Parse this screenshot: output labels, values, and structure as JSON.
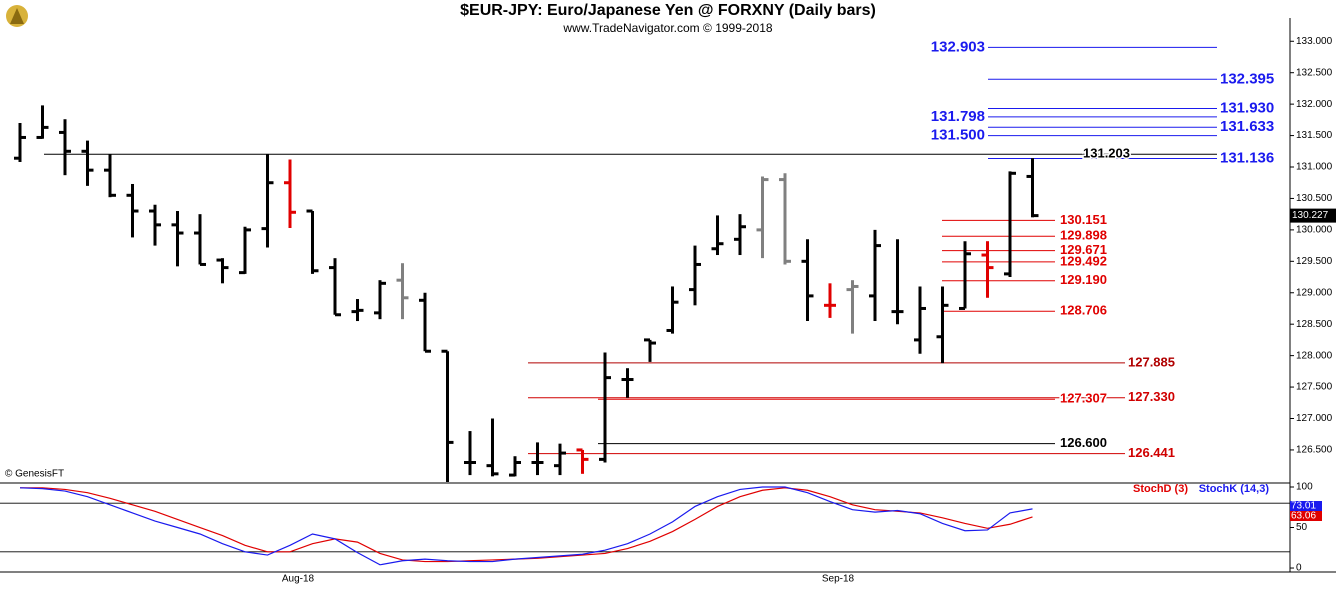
{
  "chart_data": [
    {
      "type": "ohlc",
      "title": "$EUR-JPY:  Euro/Japanese Yen @ FORXNY  (Daily bars)",
      "subtitle": "www.TradeNavigator.com © 1999-2018",
      "source": "© GenesisFT",
      "categories": [
        null,
        null,
        null,
        null,
        null,
        null,
        null,
        null,
        null,
        null,
        null,
        null,
        "Aug-18",
        null,
        null,
        null,
        null,
        null,
        null,
        null,
        null,
        null,
        null,
        null,
        null,
        null,
        null,
        null,
        null,
        null,
        null,
        null,
        null,
        null,
        null,
        null,
        "Sep-18",
        null,
        null,
        null,
        null,
        null,
        null,
        null,
        null,
        null
      ],
      "open": [
        131.14,
        131.47,
        131.55,
        131.25,
        130.95,
        130.55,
        130.3,
        130.08,
        129.95,
        129.52,
        129.32,
        130.02,
        130.75,
        130.3,
        129.4,
        128.7,
        128.68,
        129.2,
        128.88,
        128.07,
        126.3,
        126.25,
        126.1,
        126.3,
        126.25,
        126.5,
        126.35,
        127.62,
        128.25,
        128.4,
        129.05,
        129.7,
        129.85,
        130.0,
        130.8,
        129.5,
        128.8,
        129.05,
        128.95,
        128.7,
        128.25,
        128.3,
        128.75,
        129.6,
        129.3,
        130.85
      ],
      "high": [
        131.7,
        131.98,
        131.76,
        131.42,
        131.2,
        130.73,
        130.4,
        130.3,
        130.25,
        129.55,
        130.05,
        131.2,
        131.12,
        130.3,
        129.55,
        128.9,
        129.2,
        129.47,
        129.0,
        128.07,
        126.8,
        127.0,
        126.4,
        126.62,
        126.6,
        126.5,
        128.05,
        127.8,
        128.25,
        129.1,
        129.75,
        130.23,
        130.25,
        130.85,
        130.9,
        129.85,
        129.15,
        129.2,
        130.0,
        129.85,
        129.1,
        129.1,
        129.82,
        129.82,
        130.93,
        131.14
      ],
      "low": [
        131.08,
        131.45,
        130.87,
        130.7,
        130.52,
        129.88,
        129.75,
        129.42,
        129.45,
        129.15,
        129.3,
        129.72,
        130.03,
        129.3,
        128.65,
        128.55,
        128.58,
        128.58,
        128.07,
        125.9,
        126.1,
        126.08,
        126.08,
        126.1,
        126.1,
        126.12,
        126.3,
        127.33,
        127.9,
        128.35,
        128.8,
        129.6,
        129.6,
        129.55,
        129.45,
        128.55,
        128.6,
        128.35,
        128.55,
        128.5,
        128.03,
        127.88,
        128.75,
        128.92,
        129.25,
        130.2
      ],
      "close": [
        131.47,
        131.63,
        131.25,
        130.95,
        130.55,
        130.3,
        130.08,
        129.95,
        129.45,
        129.4,
        130.0,
        130.75,
        130.28,
        129.35,
        128.65,
        128.72,
        129.15,
        128.92,
        128.07,
        126.62,
        126.3,
        126.12,
        126.3,
        126.3,
        126.45,
        126.35,
        127.65,
        127.62,
        128.2,
        128.85,
        129.45,
        129.78,
        130.05,
        130.8,
        129.5,
        128.95,
        128.8,
        129.1,
        129.75,
        128.7,
        128.75,
        128.8,
        129.62,
        129.4,
        130.9,
        130.227
      ],
      "bar_colors": [
        "#000",
        "#000",
        "#000",
        "#000",
        "#000",
        "#000",
        "#000",
        "#000",
        "#000",
        "#000",
        "#000",
        "#000",
        "#e00000",
        "#000",
        "#000",
        "#000",
        "#000",
        "#808080",
        "#000",
        "#000",
        "#000",
        "#000",
        "#000",
        "#000",
        "#000",
        "#e00000",
        "#000",
        "#000",
        "#000",
        "#000",
        "#000",
        "#000",
        "#000",
        "#808080",
        "#808080",
        "#000",
        "#e00000",
        "#808080",
        "#000",
        "#000",
        "#000",
        "#000",
        "#000",
        "#e00000",
        "#000",
        "#000"
      ],
      "ylim": [
        125.99,
        133.37
      ],
      "yticks": [
        {
          "value": 126.5,
          "label": "126.500"
        },
        {
          "value": 127,
          "label": "127.000"
        },
        {
          "value": 127.5,
          "label": "127.500"
        },
        {
          "value": 128,
          "label": "128.000"
        },
        {
          "value": 128.5,
          "label": "128.500"
        },
        {
          "value": 129,
          "label": "129.000"
        },
        {
          "value": 129.5,
          "label": "129.500"
        },
        {
          "value": 130,
          "label": "130.000"
        },
        {
          "value": 130.5,
          "label": "130.500"
        },
        {
          "value": 131,
          "label": "131.000"
        },
        {
          "value": 131.5,
          "label": "131.500"
        },
        {
          "value": 132,
          "label": "132.000"
        },
        {
          "value": 132.5,
          "label": "132.500"
        },
        {
          "value": 133,
          "label": "133.000"
        }
      ],
      "levels": [
        {
          "value": 132.903,
          "label": "132.903",
          "color": "#1a1aee"
        },
        {
          "value": 132.395,
          "label": "132.395",
          "color": "#1a1aee"
        },
        {
          "value": 131.93,
          "label": "131.930",
          "color": "#1a1aee"
        },
        {
          "value": 131.798,
          "label": "131.798",
          "color": "#1a1aee"
        },
        {
          "value": 131.633,
          "label": "131.633",
          "color": "#1a1aee"
        },
        {
          "value": 131.5,
          "label": "131.500",
          "color": "#1a1aee"
        },
        {
          "value": 131.136,
          "label": "131.136",
          "color": "#1a1aee"
        },
        {
          "value": 131.203,
          "label": "131.203",
          "color": "#000000"
        },
        {
          "value": 130.151,
          "label": "130.151",
          "color": "#e00000"
        },
        {
          "value": 129.898,
          "label": "129.898",
          "color": "#e00000"
        },
        {
          "value": 129.671,
          "label": "129.671",
          "color": "#e00000"
        },
        {
          "value": 129.492,
          "label": "129.492",
          "color": "#e00000"
        },
        {
          "value": 129.19,
          "label": "129.190",
          "color": "#e00000"
        },
        {
          "value": 128.706,
          "label": "128.706",
          "color": "#e00000"
        },
        {
          "value": 127.885,
          "label": "127.885",
          "color": "#b00000"
        },
        {
          "value": 127.33,
          "label": "127.330",
          "color": "#d00000"
        },
        {
          "value": 127.307,
          "label": "127.307",
          "color": "#e00000"
        },
        {
          "value": 126.6,
          "label": "126.600",
          "color": "#000000"
        },
        {
          "value": 126.441,
          "label": "126.441",
          "color": "#d00000"
        }
      ]
    },
    {
      "type": "line",
      "series": [
        {
          "name": "StochD (3)",
          "color": "#e00000",
          "values": [
            99,
            99,
            97,
            93,
            86,
            78,
            70,
            60,
            50,
            40,
            28,
            20,
            20,
            30,
            36,
            32,
            18,
            10,
            8,
            8,
            9,
            10,
            11,
            12,
            14,
            16,
            18,
            24,
            33,
            45,
            60,
            76,
            88,
            96,
            99,
            96,
            88,
            78,
            72,
            70,
            68,
            62,
            55,
            49,
            54,
            63.06
          ]
        },
        {
          "name": "StochK (14,3)",
          "color": "#1a1aee",
          "values": [
            99,
            98,
            95,
            88,
            78,
            68,
            58,
            50,
            42,
            30,
            20,
            16,
            28,
            42,
            36,
            19,
            4,
            9,
            11,
            9,
            8,
            8,
            11,
            13,
            15,
            17,
            22,
            30,
            42,
            57,
            76,
            88,
            97,
            100,
            100,
            93,
            82,
            72,
            69,
            71,
            67,
            55,
            46,
            47,
            68,
            73.01
          ]
        }
      ],
      "bands": [
        20,
        80
      ],
      "ylim": [
        -4.9,
        103.7
      ],
      "yticks": [
        0,
        50,
        100
      ]
    }
  ]
}
